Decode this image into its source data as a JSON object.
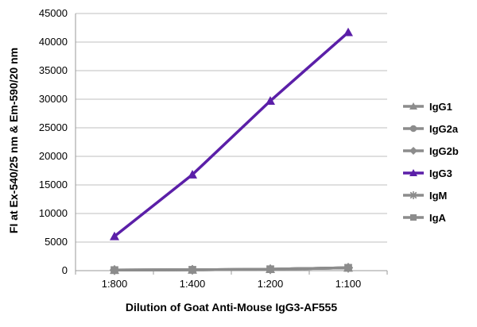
{
  "chart_data": {
    "type": "line",
    "title": "",
    "xlabel": "Dilution of Goat Anti-Mouse IgG3-AF555",
    "ylabel": "FI at Ex-540/25 nm & Em-590/20 nm",
    "categories": [
      "1:800",
      "1:400",
      "1:200",
      "1:100"
    ],
    "ylim": [
      0,
      45000
    ],
    "yticks": [
      0,
      5000,
      10000,
      15000,
      20000,
      25000,
      30000,
      35000,
      40000,
      45000
    ],
    "grid": "horizontal",
    "legend": "right",
    "series": [
      {
        "name": "IgG1",
        "values": [
          100,
          150,
          250,
          500
        ],
        "color": "#8c8c8c",
        "marker": "triangle"
      },
      {
        "name": "IgG2a",
        "values": [
          100,
          150,
          250,
          500
        ],
        "color": "#8c8c8c",
        "marker": "circle"
      },
      {
        "name": "IgG2b",
        "values": [
          100,
          150,
          250,
          500
        ],
        "color": "#8c8c8c",
        "marker": "diamond"
      },
      {
        "name": "IgG3",
        "values": [
          6000,
          16800,
          29700,
          41700
        ],
        "color": "#5b1fa8",
        "marker": "triangle"
      },
      {
        "name": "IgM",
        "values": [
          100,
          150,
          250,
          500
        ],
        "color": "#8c8c8c",
        "marker": "star"
      },
      {
        "name": "IgA",
        "values": [
          100,
          150,
          250,
          500
        ],
        "color": "#8c8c8c",
        "marker": "square"
      }
    ]
  }
}
